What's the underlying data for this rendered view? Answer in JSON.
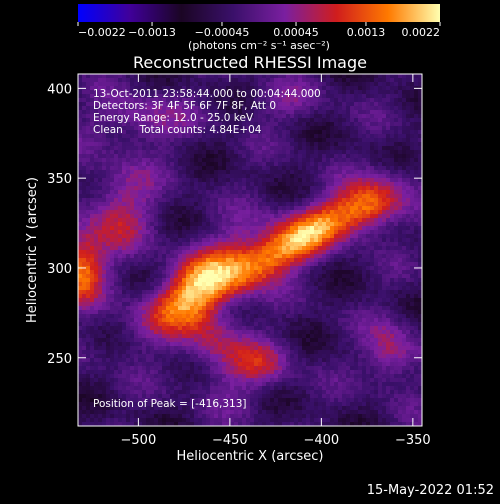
{
  "chart_data": {
    "type": "heatmap",
    "title": "Reconstructed RHESSI Image",
    "xlabel": "Heliocentric X (arcsec)",
    "ylabel": "Heliocentric Y (arcsec)",
    "xlim": [
      -533,
      -345
    ],
    "ylim": [
      212,
      408
    ],
    "xticks": [
      -500,
      -450,
      -400,
      -350
    ],
    "xtick_labels": [
      "−500",
      "−450",
      "−400",
      "−350"
    ],
    "yticks": [
      250,
      300,
      350,
      400
    ],
    "ytick_labels": [
      "250",
      "300",
      "350",
      "400"
    ],
    "colorbar": {
      "range": [
        -0.0022,
        0.0022
      ],
      "ticks": [
        -0.0022,
        -0.0013,
        -0.00045,
        0.00045,
        0.0013,
        0.0022
      ],
      "tick_labels": [
        "−0.0022",
        "−0.0013",
        "−0.00045",
        "0.00045",
        "0.0013",
        "0.0022"
      ],
      "unit_label": "(photons cm⁻² s⁻¹ asec⁻²)",
      "colors": [
        "#0000ff",
        "#40009a",
        "#1b0524",
        "#3a106a",
        "#7a1fa0",
        "#d01d1d",
        "#ff7a00",
        "#ffffb0"
      ]
    },
    "annotations": [
      "13-Oct-2011 23:58:44.000 to 00:04:44.000",
      "Detectors: 3F 4F 5F 6F 7F 8F, Att 0",
      "Energy Range: 12.0 - 25.0 keV",
      "Clean     Total counts: 4.84E+04"
    ],
    "peak_label": "Position of Peak = [-416,313]",
    "peak": [
      -416,
      313
    ],
    "sources": [
      {
        "x": -417,
        "y": 313,
        "amp": 0.0022,
        "sx": 38,
        "sy": 9,
        "rot": 32
      },
      {
        "x": -468,
        "y": 292,
        "amp": 0.0015,
        "sx": 30,
        "sy": 10,
        "rot": 40
      },
      {
        "x": -372,
        "y": 332,
        "amp": 0.0013,
        "sx": 12,
        "sy": 9,
        "rot": 30
      },
      {
        "x": -532,
        "y": 300,
        "amp": 0.0019,
        "sx": 9,
        "sy": 14,
        "rot": 0
      },
      {
        "x": -510,
        "y": 333,
        "amp": 0.001,
        "sx": 14,
        "sy": 18,
        "rot": 0
      },
      {
        "x": -460,
        "y": 262,
        "amp": 0.001,
        "sx": 12,
        "sy": 22,
        "rot": 20
      },
      {
        "x": -432,
        "y": 246,
        "amp": 0.0009,
        "sx": 12,
        "sy": 10,
        "rot": 0
      },
      {
        "x": -500,
        "y": 382,
        "amp": 0.0008,
        "sx": 18,
        "sy": 10,
        "rot": 0
      },
      {
        "x": -420,
        "y": 392,
        "amp": 0.0005,
        "sx": 16,
        "sy": 8,
        "rot": 0
      },
      {
        "x": -362,
        "y": 252,
        "amp": 0.0011,
        "sx": 10,
        "sy": 12,
        "rot": 0
      }
    ],
    "background_level": -0.0004,
    "grid": false
  },
  "footer": {
    "timestamp": "15-May-2022 01:52"
  }
}
